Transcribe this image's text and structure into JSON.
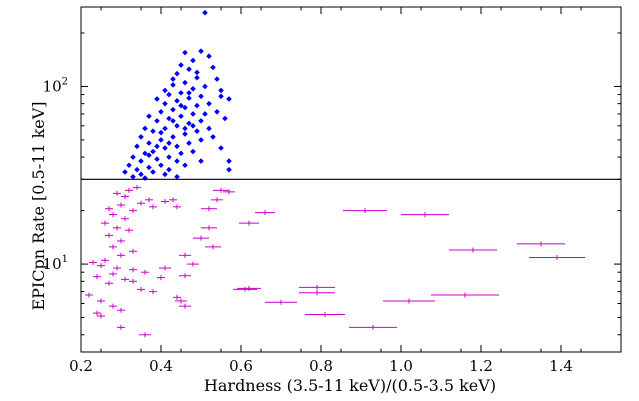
{
  "chart_data": {
    "type": "scatter",
    "title": "",
    "xlabel": "Hardness (3.5-11 keV)/(0.5-3.5 keV)",
    "ylabel": "EPICpn Rate [0.5-11 keV]",
    "xlim": [
      0.2,
      1.55
    ],
    "ylim": [
      3.2,
      280
    ],
    "yscale": "log",
    "xticks": [
      0.2,
      0.4,
      0.6,
      0.8,
      1.0,
      1.2,
      1.4
    ],
    "xtick_labels": [
      "0.2",
      "0.4",
      "0.6",
      "0.8",
      "1.0",
      "1.2",
      "1.4"
    ],
    "yticks": [
      10,
      100
    ],
    "ytick_labels_base": [
      "10",
      "10"
    ],
    "ytick_labels_exp": [
      "1",
      "2"
    ],
    "threshold_line": 30,
    "grid": false,
    "series": [
      {
        "color": "#0000ff",
        "marker": "diamond",
        "points": [
          {
            "x": 0.51,
            "y": 260
          },
          {
            "x": 0.46,
            "y": 155
          },
          {
            "x": 0.5,
            "y": 158
          },
          {
            "x": 0.52,
            "y": 148
          },
          {
            "x": 0.48,
            "y": 140
          },
          {
            "x": 0.45,
            "y": 132
          },
          {
            "x": 0.53,
            "y": 128
          },
          {
            "x": 0.47,
            "y": 125
          },
          {
            "x": 0.44,
            "y": 118
          },
          {
            "x": 0.49,
            "y": 112
          },
          {
            "x": 0.54,
            "y": 110
          },
          {
            "x": 0.46,
            "y": 105
          },
          {
            "x": 0.43,
            "y": 102
          },
          {
            "x": 0.51,
            "y": 100
          },
          {
            "x": 0.48,
            "y": 97
          },
          {
            "x": 0.55,
            "y": 95
          },
          {
            "x": 0.45,
            "y": 92
          },
          {
            "x": 0.42,
            "y": 90
          },
          {
            "x": 0.5,
            "y": 88
          },
          {
            "x": 0.47,
            "y": 86
          },
          {
            "x": 0.57,
            "y": 85
          },
          {
            "x": 0.44,
            "y": 83
          },
          {
            "x": 0.41,
            "y": 80
          },
          {
            "x": 0.52,
            "y": 80
          },
          {
            "x": 0.49,
            "y": 78
          },
          {
            "x": 0.46,
            "y": 76
          },
          {
            "x": 0.43,
            "y": 74
          },
          {
            "x": 0.4,
            "y": 72
          },
          {
            "x": 0.54,
            "y": 72
          },
          {
            "x": 0.48,
            "y": 70
          },
          {
            "x": 0.45,
            "y": 68
          },
          {
            "x": 0.42,
            "y": 66
          },
          {
            "x": 0.39,
            "y": 64
          },
          {
            "x": 0.5,
            "y": 64
          },
          {
            "x": 0.56,
            "y": 66
          },
          {
            "x": 0.47,
            "y": 62
          },
          {
            "x": 0.44,
            "y": 60
          },
          {
            "x": 0.41,
            "y": 58
          },
          {
            "x": 0.38,
            "y": 56
          },
          {
            "x": 0.52,
            "y": 58
          },
          {
            "x": 0.49,
            "y": 56
          },
          {
            "x": 0.46,
            "y": 54
          },
          {
            "x": 0.43,
            "y": 52
          },
          {
            "x": 0.4,
            "y": 50
          },
          {
            "x": 0.37,
            "y": 48
          },
          {
            "x": 0.5,
            "y": 50
          },
          {
            "x": 0.47,
            "y": 48
          },
          {
            "x": 0.44,
            "y": 46
          },
          {
            "x": 0.41,
            "y": 45
          },
          {
            "x": 0.38,
            "y": 43
          },
          {
            "x": 0.36,
            "y": 42
          },
          {
            "x": 0.45,
            "y": 42
          },
          {
            "x": 0.48,
            "y": 43
          },
          {
            "x": 0.42,
            "y": 40
          },
          {
            "x": 0.39,
            "y": 39
          },
          {
            "x": 0.35,
            "y": 38
          },
          {
            "x": 0.44,
            "y": 38
          },
          {
            "x": 0.4,
            "y": 36
          },
          {
            "x": 0.37,
            "y": 35
          },
          {
            "x": 0.34,
            "y": 34
          },
          {
            "x": 0.42,
            "y": 34
          },
          {
            "x": 0.46,
            "y": 36
          },
          {
            "x": 0.38,
            "y": 33
          },
          {
            "x": 0.35,
            "y": 32
          },
          {
            "x": 0.33,
            "y": 31
          },
          {
            "x": 0.41,
            "y": 32
          },
          {
            "x": 0.36,
            "y": 30.5
          },
          {
            "x": 0.44,
            "y": 31
          },
          {
            "x": 0.5,
            "y": 38
          },
          {
            "x": 0.57,
            "y": 38
          },
          {
            "x": 0.57,
            "y": 34
          },
          {
            "x": 0.55,
            "y": 45
          },
          {
            "x": 0.53,
            "y": 52
          },
          {
            "x": 0.51,
            "y": 70
          },
          {
            "x": 0.55,
            "y": 88
          },
          {
            "x": 0.43,
            "y": 110
          },
          {
            "x": 0.41,
            "y": 95
          },
          {
            "x": 0.39,
            "y": 85
          },
          {
            "x": 0.37,
            "y": 68
          },
          {
            "x": 0.36,
            "y": 58
          },
          {
            "x": 0.35,
            "y": 52
          },
          {
            "x": 0.34,
            "y": 46
          },
          {
            "x": 0.33,
            "y": 40
          },
          {
            "x": 0.32,
            "y": 36
          },
          {
            "x": 0.31,
            "y": 33
          },
          {
            "x": 0.47,
            "y": 92
          },
          {
            "x": 0.49,
            "y": 120
          },
          {
            "x": 0.45,
            "y": 78
          },
          {
            "x": 0.43,
            "y": 64
          },
          {
            "x": 0.4,
            "y": 55
          },
          {
            "x": 0.46,
            "y": 58
          },
          {
            "x": 0.39,
            "y": 46
          },
          {
            "x": 0.37,
            "y": 41
          },
          {
            "x": 0.42,
            "y": 48
          },
          {
            "x": 0.48,
            "y": 60
          }
        ]
      },
      {
        "color": "#cc00cc",
        "marker": "errorbar",
        "points": [
          {
            "x": 0.34,
            "y": 27,
            "xerr": 0.01
          },
          {
            "x": 0.32,
            "y": 26,
            "xerr": 0.01
          },
          {
            "x": 0.29,
            "y": 25,
            "xerr": 0.01
          },
          {
            "x": 0.31,
            "y": 24,
            "xerr": 0.01
          },
          {
            "x": 0.37,
            "y": 23,
            "xerr": 0.01
          },
          {
            "x": 0.43,
            "y": 23,
            "xerr": 0.01
          },
          {
            "x": 0.41,
            "y": 22.5,
            "xerr": 0.01
          },
          {
            "x": 0.35,
            "y": 22,
            "xerr": 0.01
          },
          {
            "x": 0.3,
            "y": 21.5,
            "xerr": 0.01
          },
          {
            "x": 0.38,
            "y": 21,
            "xerr": 0.01
          },
          {
            "x": 0.44,
            "y": 21,
            "xerr": 0.01
          },
          {
            "x": 0.27,
            "y": 20.5,
            "xerr": 0.01
          },
          {
            "x": 0.33,
            "y": 20,
            "xerr": 0.01
          },
          {
            "x": 0.28,
            "y": 19,
            "xerr": 0.01
          },
          {
            "x": 0.31,
            "y": 18,
            "xerr": 0.01
          },
          {
            "x": 0.26,
            "y": 17,
            "xerr": 0.01
          },
          {
            "x": 0.29,
            "y": 16,
            "xerr": 0.01
          },
          {
            "x": 0.32,
            "y": 15.5,
            "xerr": 0.01
          },
          {
            "x": 0.27,
            "y": 14.5,
            "xerr": 0.01
          },
          {
            "x": 0.3,
            "y": 13.5,
            "xerr": 0.01
          },
          {
            "x": 0.28,
            "y": 12.5,
            "xerr": 0.01
          },
          {
            "x": 0.33,
            "y": 11.8,
            "xerr": 0.01
          },
          {
            "x": 0.3,
            "y": 11.2,
            "xerr": 0.01
          },
          {
            "x": 0.26,
            "y": 10.5,
            "xerr": 0.01
          },
          {
            "x": 0.23,
            "y": 10.2,
            "xerr": 0.01
          },
          {
            "x": 0.25,
            "y": 9.8,
            "xerr": 0.01
          },
          {
            "x": 0.29,
            "y": 9.5,
            "xerr": 0.01
          },
          {
            "x": 0.33,
            "y": 9.3,
            "xerr": 0.01
          },
          {
            "x": 0.36,
            "y": 9.0,
            "xerr": 0.01
          },
          {
            "x": 0.28,
            "y": 8.8,
            "xerr": 0.01
          },
          {
            "x": 0.24,
            "y": 8.5,
            "xerr": 0.01
          },
          {
            "x": 0.31,
            "y": 8.2,
            "xerr": 0.01
          },
          {
            "x": 0.27,
            "y": 7.8,
            "xerr": 0.01
          },
          {
            "x": 0.22,
            "y": 6.7,
            "xerr": 0.01
          },
          {
            "x": 0.25,
            "y": 6.2,
            "xerr": 0.01
          },
          {
            "x": 0.28,
            "y": 5.8,
            "xerr": 0.01
          },
          {
            "x": 0.24,
            "y": 5.3,
            "xerr": 0.01
          },
          {
            "x": 0.25,
            "y": 5.1,
            "xerr": 0.01
          },
          {
            "x": 0.3,
            "y": 5.5,
            "xerr": 0.01
          },
          {
            "x": 0.3,
            "y": 4.4,
            "xerr": 0.01
          },
          {
            "x": 0.36,
            "y": 4.0,
            "xerr": 0.015
          },
          {
            "x": 0.35,
            "y": 7.2,
            "xerr": 0.01
          },
          {
            "x": 0.38,
            "y": 7.0,
            "xerr": 0.01
          },
          {
            "x": 0.4,
            "y": 8.4,
            "xerr": 0.01
          },
          {
            "x": 0.33,
            "y": 8.0,
            "xerr": 0.01
          },
          {
            "x": 0.41,
            "y": 9.5,
            "xerr": 0.015
          },
          {
            "x": 0.45,
            "y": 6.2,
            "xerr": 0.015
          },
          {
            "x": 0.46,
            "y": 5.8,
            "xerr": 0.015
          },
          {
            "x": 0.44,
            "y": 6.5,
            "xerr": 0.01
          },
          {
            "x": 0.46,
            "y": 8.6,
            "xerr": 0.015
          },
          {
            "x": 0.46,
            "y": 11.2,
            "xerr": 0.015
          },
          {
            "x": 0.48,
            "y": 10.0,
            "xerr": 0.015
          },
          {
            "x": 0.5,
            "y": 14.0,
            "xerr": 0.02
          },
          {
            "x": 0.52,
            "y": 16.0,
            "xerr": 0.02
          },
          {
            "x": 0.53,
            "y": 12.5,
            "xerr": 0.02
          },
          {
            "x": 0.52,
            "y": 20.5,
            "xerr": 0.02
          },
          {
            "x": 0.55,
            "y": 26.0,
            "xerr": 0.02
          },
          {
            "x": 0.57,
            "y": 25.5,
            "xerr": 0.015
          },
          {
            "x": 0.54,
            "y": 23.0,
            "xerr": 0.015
          },
          {
            "x": 0.61,
            "y": 7.2,
            "xerr": 0.03
          },
          {
            "x": 0.62,
            "y": 7.3,
            "xerr": 0.03
          },
          {
            "x": 0.62,
            "y": 17.0,
            "xerr": 0.025
          },
          {
            "x": 0.66,
            "y": 19.5,
            "xerr": 0.025
          },
          {
            "x": 0.7,
            "y": 6.1,
            "xerr": 0.04
          },
          {
            "x": 0.79,
            "y": 7.4,
            "xerr": 0.045
          },
          {
            "x": 0.79,
            "y": 6.9,
            "xerr": 0.045
          },
          {
            "x": 0.81,
            "y": 5.2,
            "xerr": 0.05
          },
          {
            "x": 0.91,
            "y": 20.0,
            "xerr": 0.055
          },
          {
            "x": 0.93,
            "y": 4.4,
            "xerr": 0.06
          },
          {
            "x": 1.02,
            "y": 6.2,
            "xerr": 0.065
          },
          {
            "x": 1.06,
            "y": 19.0,
            "xerr": 0.06
          },
          {
            "x": 1.16,
            "y": 6.7,
            "xerr": 0.085
          },
          {
            "x": 1.18,
            "y": 12.0,
            "xerr": 0.06
          },
          {
            "x": 1.35,
            "y": 13.0,
            "xerr": 0.06
          },
          {
            "x": 1.39,
            "y": 10.9,
            "xerr": 0.07
          }
        ]
      }
    ]
  }
}
